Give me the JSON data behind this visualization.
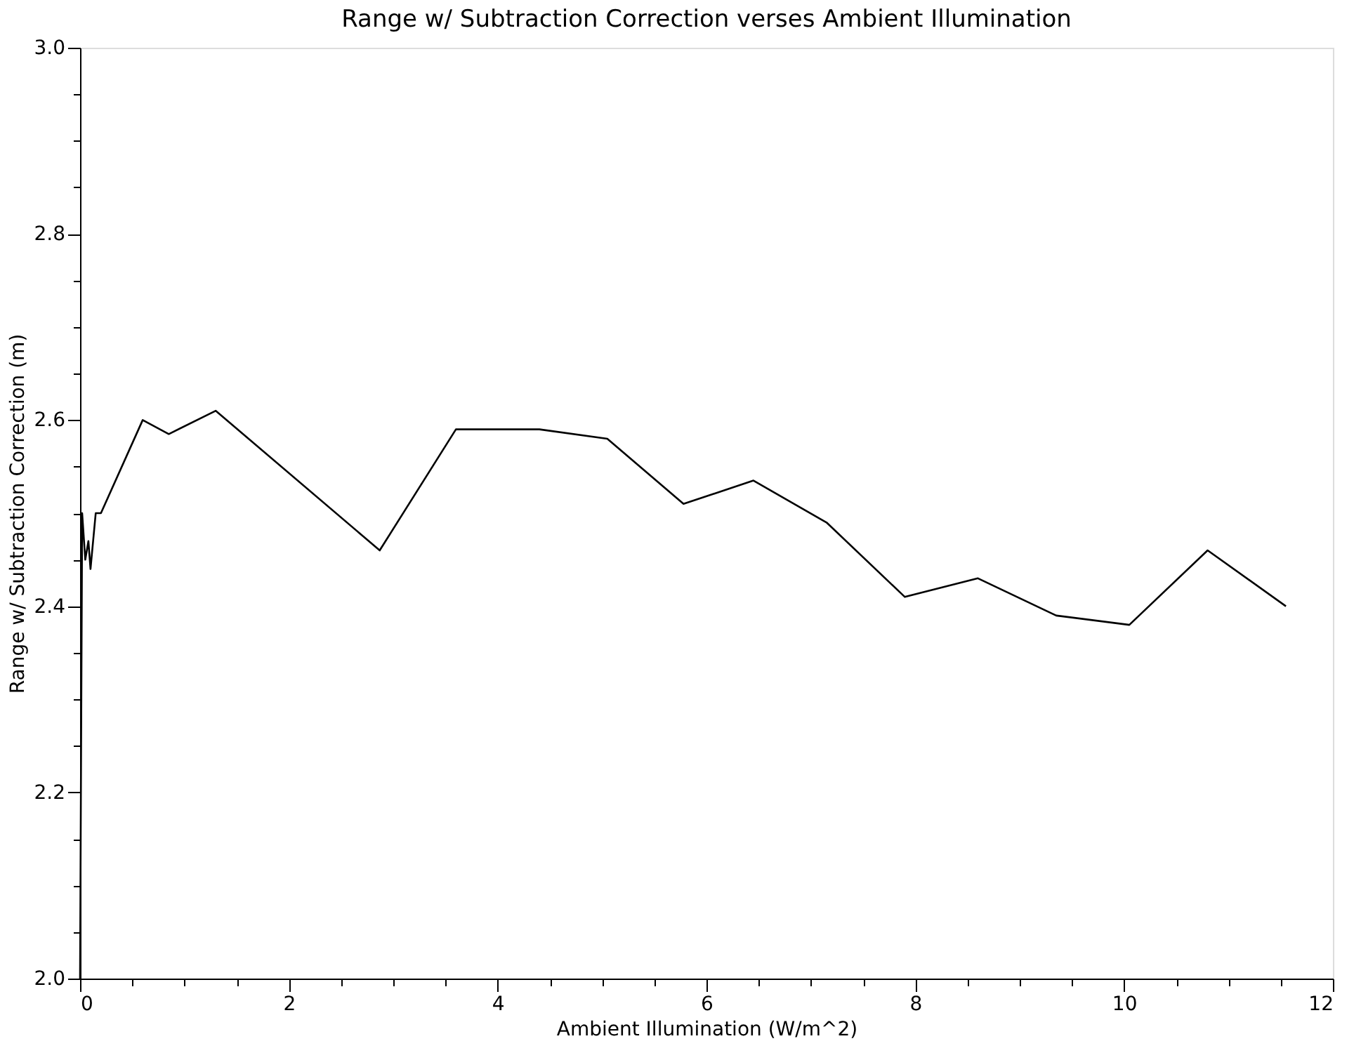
{
  "chart_data": {
    "type": "line",
    "title": "Range w/ Subtraction Correction verses Ambient Illumination",
    "xlabel": "Ambient Illumination (W/m^2)",
    "ylabel": "Range w/ Subtraction Correction (m)",
    "x": [
      0,
      0.02,
      0.05,
      0.08,
      0.1,
      0.15,
      0.2,
      0.6,
      0.85,
      1.3,
      2.87,
      3.6,
      4.4,
      5.05,
      5.78,
      6.45,
      7.15,
      7.9,
      8.6,
      9.35,
      10.05,
      10.8,
      11.55
    ],
    "series": [
      {
        "color": "#000000",
        "values": [
          2.0,
          2.5,
          2.45,
          2.47,
          2.44,
          2.5,
          2.5,
          2.6,
          2.585,
          2.61,
          2.46,
          2.59,
          2.59,
          2.58,
          2.51,
          2.535,
          2.49,
          2.41,
          2.43,
          2.39,
          2.38,
          2.46,
          2.4
        ]
      }
    ],
    "xlim": [
      0,
      12
    ],
    "ylim": [
      2.0,
      3.0
    ],
    "xticks": [
      0,
      {
        "value": 0.5,
        "label": null
      },
      {
        "value": 1,
        "label": null
      },
      {
        "value": 1.5,
        "label": null
      },
      2,
      {
        "value": 2.5,
        "label": null
      },
      {
        "value": 3,
        "label": null
      },
      {
        "value": 3.5,
        "label": null
      },
      4,
      {
        "value": 4.5,
        "label": null
      },
      {
        "value": 5,
        "label": null
      },
      {
        "value": 5.5,
        "label": null
      },
      6,
      {
        "value": 6.5,
        "label": null
      },
      {
        "value": 7,
        "label": null
      },
      {
        "value": 7.5,
        "label": null
      },
      8,
      {
        "value": 8.5,
        "label": null
      },
      {
        "value": 9,
        "label": null
      },
      {
        "value": 9.5,
        "label": null
      },
      10,
      {
        "value": 10.5,
        "label": null
      },
      {
        "value": 11,
        "label": null
      },
      {
        "value": 11.5,
        "label": null
      },
      12
    ],
    "yticks": [
      {
        "value": 2.0,
        "label": "2.0"
      },
      {
        "value": 2.05,
        "label": null
      },
      {
        "value": 2.1,
        "label": null
      },
      {
        "value": 2.15,
        "label": null
      },
      {
        "value": 2.2,
        "label": "2.2"
      },
      {
        "value": 2.25,
        "label": null
      },
      {
        "value": 2.3,
        "label": null
      },
      {
        "value": 2.35,
        "label": null
      },
      {
        "value": 2.4,
        "label": "2.4"
      },
      {
        "value": 2.45,
        "label": null
      },
      {
        "value": 2.5,
        "label": null
      },
      {
        "value": 2.55,
        "label": null
      },
      {
        "value": 2.6,
        "label": "2.6"
      },
      {
        "value": 2.65,
        "label": null
      },
      {
        "value": 2.7,
        "label": null
      },
      {
        "value": 2.75,
        "label": null
      },
      {
        "value": 2.8,
        "label": "2.8"
      },
      {
        "value": 2.85,
        "label": null
      },
      {
        "value": 2.9,
        "label": null
      },
      {
        "value": 2.95,
        "label": null
      },
      {
        "value": 3.0,
        "label": "3.0"
      }
    ],
    "grid": false,
    "marker": "none",
    "line_style": "solid"
  }
}
